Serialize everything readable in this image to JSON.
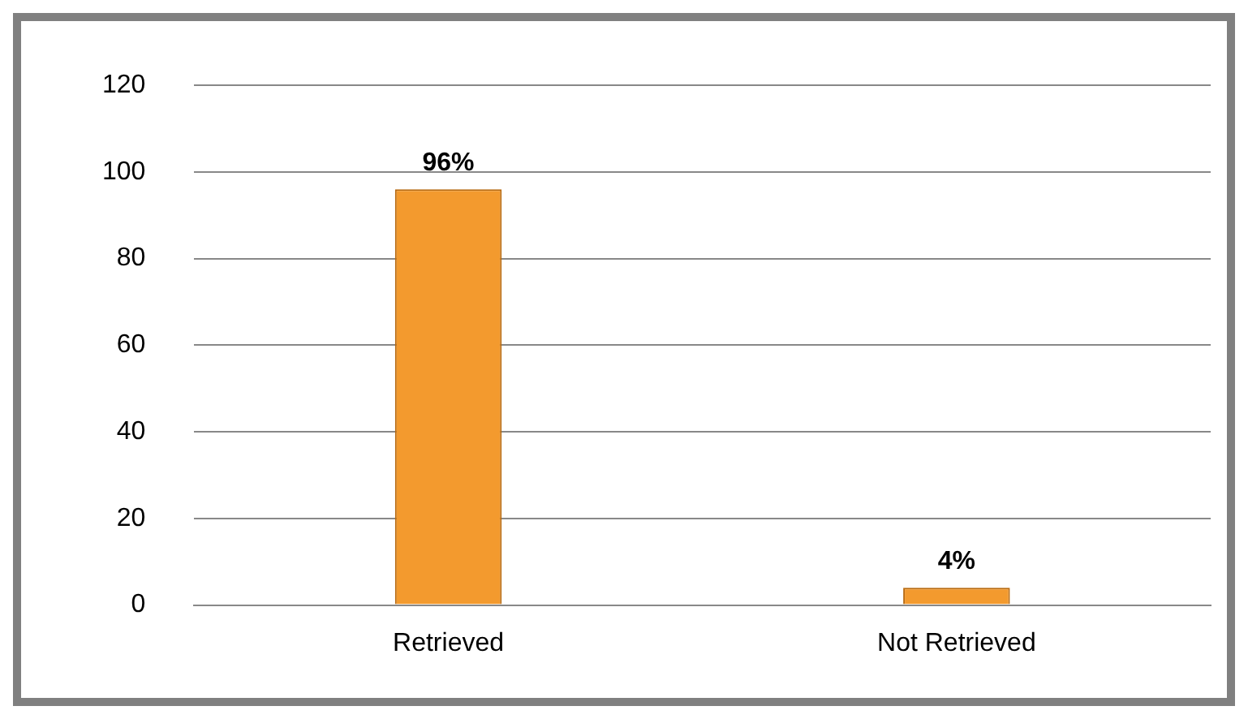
{
  "chart_data": {
    "type": "bar",
    "categories": [
      "Retrieved",
      "Not Retrieved"
    ],
    "values": [
      96,
      4
    ],
    "value_labels": [
      "96%",
      "4%"
    ],
    "color": "#f39a2e",
    "ylim": [
      0,
      120
    ],
    "yticks": [
      0,
      20,
      40,
      60,
      80,
      100,
      120
    ],
    "grid": "y"
  }
}
